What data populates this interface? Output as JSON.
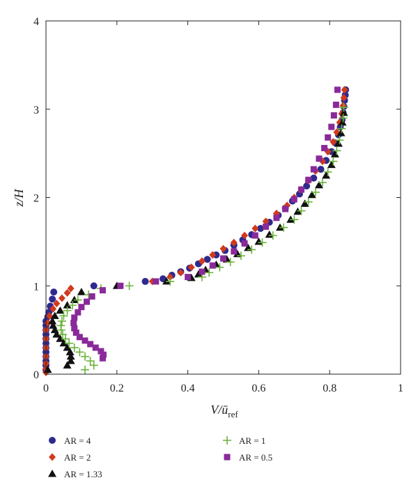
{
  "chart_data": {
    "type": "scatter",
    "title": "",
    "xlabel": "V/ū",
    "xlabel_sub": "ref",
    "ylabel": "z/H",
    "xlim": [
      0,
      1
    ],
    "ylim": [
      0,
      4
    ],
    "x_ticks": [
      0,
      0.2,
      0.4,
      0.6,
      0.8,
      1
    ],
    "x_tick_labels": [
      "0",
      "0.2",
      "0.4",
      "0.6",
      "0.8",
      "1"
    ],
    "y_ticks": [
      0,
      1,
      2,
      3,
      4
    ],
    "y_tick_labels": [
      "0",
      "1",
      "2",
      "3",
      "4"
    ],
    "grid": false,
    "legend_position": "bottom",
    "series": [
      {
        "name": "AR = 4",
        "marker": "circle",
        "color": "#2e2a8e",
        "x": [
          0.0,
          0.0,
          0.0,
          0.0,
          0.0,
          0.0,
          0.0,
          0.0,
          0.0,
          0.0,
          0.0,
          0.0,
          0.005,
          0.008,
          0.012,
          0.018,
          0.022,
          0.135,
          0.28,
          0.33,
          0.355,
          0.38,
          0.405,
          0.43,
          0.455,
          0.48,
          0.505,
          0.53,
          0.555,
          0.58,
          0.605,
          0.63,
          0.655,
          0.675,
          0.695,
          0.715,
          0.735,
          0.755,
          0.775,
          0.79,
          0.805,
          0.815,
          0.825,
          0.83,
          0.835,
          0.838,
          0.84,
          0.842,
          0.844,
          0.845
        ],
        "y": [
          0.05,
          0.1,
          0.15,
          0.2,
          0.25,
          0.3,
          0.35,
          0.4,
          0.45,
          0.5,
          0.55,
          0.6,
          0.65,
          0.7,
          0.77,
          0.85,
          0.93,
          1.0,
          1.05,
          1.08,
          1.12,
          1.16,
          1.2,
          1.25,
          1.3,
          1.35,
          1.4,
          1.46,
          1.52,
          1.58,
          1.65,
          1.72,
          1.8,
          1.88,
          1.96,
          2.04,
          2.13,
          2.22,
          2.32,
          2.42,
          2.52,
          2.62,
          2.71,
          2.8,
          2.88,
          2.96,
          3.03,
          3.1,
          3.16,
          3.22
        ]
      },
      {
        "name": "AR = 2",
        "marker": "diamond",
        "color": "#d03a1e",
        "x": [
          0.0,
          0.0,
          0.0,
          0.0,
          0.0,
          0.0,
          0.0,
          0.005,
          0.01,
          0.02,
          0.03,
          0.045,
          0.06,
          0.07,
          0.3,
          0.35,
          0.38,
          0.41,
          0.44,
          0.47,
          0.5,
          0.53,
          0.56,
          0.59,
          0.62,
          0.65,
          0.68,
          0.7,
          0.72,
          0.74,
          0.76,
          0.78,
          0.795,
          0.81,
          0.82,
          0.828,
          0.834,
          0.838,
          0.84,
          0.842
        ],
        "y": [
          0.02,
          0.06,
          0.12,
          0.2,
          0.3,
          0.4,
          0.5,
          0.58,
          0.66,
          0.74,
          0.8,
          0.86,
          0.92,
          0.97,
          1.05,
          1.1,
          1.15,
          1.21,
          1.28,
          1.35,
          1.42,
          1.49,
          1.57,
          1.65,
          1.73,
          1.82,
          1.91,
          2.0,
          2.09,
          2.19,
          2.3,
          2.41,
          2.52,
          2.63,
          2.74,
          2.85,
          2.95,
          3.04,
          3.13,
          3.22
        ]
      },
      {
        "name": "AR = 1.33",
        "marker": "triangle",
        "color": "#111111",
        "x": [
          0.005,
          0.06,
          0.07,
          0.07,
          0.068,
          0.06,
          0.05,
          0.04,
          0.03,
          0.025,
          0.02,
          0.018,
          0.025,
          0.04,
          0.06,
          0.08,
          0.1,
          0.2,
          0.34,
          0.41,
          0.43,
          0.45,
          0.48,
          0.51,
          0.54,
          0.57,
          0.6,
          0.63,
          0.66,
          0.69,
          0.71,
          0.73,
          0.75,
          0.77,
          0.79,
          0.805,
          0.815,
          0.825,
          0.832,
          0.836,
          0.84
        ],
        "y": [
          0.05,
          0.1,
          0.15,
          0.2,
          0.25,
          0.3,
          0.35,
          0.4,
          0.45,
          0.5,
          0.55,
          0.6,
          0.66,
          0.72,
          0.78,
          0.84,
          0.93,
          1.0,
          1.05,
          1.09,
          1.13,
          1.18,
          1.24,
          1.3,
          1.36,
          1.43,
          1.5,
          1.58,
          1.66,
          1.75,
          1.84,
          1.93,
          2.03,
          2.14,
          2.25,
          2.37,
          2.49,
          2.61,
          2.73,
          2.85,
          2.96
        ]
      },
      {
        "name": "AR = 1",
        "marker": "plus",
        "color": "#6ab23a",
        "x": [
          0.11,
          0.135,
          0.125,
          0.11,
          0.095,
          0.08,
          0.065,
          0.055,
          0.047,
          0.043,
          0.042,
          0.045,
          0.05,
          0.06,
          0.075,
          0.09,
          0.12,
          0.155,
          0.235,
          0.35,
          0.44,
          0.46,
          0.49,
          0.52,
          0.55,
          0.58,
          0.61,
          0.64,
          0.67,
          0.7,
          0.72,
          0.74,
          0.76,
          0.78,
          0.795,
          0.81,
          0.82,
          0.828,
          0.834,
          0.838,
          0.84
        ],
        "y": [
          0.05,
          0.1,
          0.15,
          0.2,
          0.25,
          0.3,
          0.35,
          0.4,
          0.45,
          0.5,
          0.55,
          0.6,
          0.66,
          0.72,
          0.78,
          0.84,
          0.9,
          0.97,
          1.0,
          1.05,
          1.1,
          1.15,
          1.21,
          1.27,
          1.34,
          1.41,
          1.49,
          1.57,
          1.66,
          1.75,
          1.85,
          1.95,
          2.06,
          2.17,
          2.29,
          2.41,
          2.53,
          2.65,
          2.78,
          2.9,
          3.02
        ]
      },
      {
        "name": "AR = 0.5",
        "marker": "square",
        "color": "#8a2a9a",
        "x": [
          0.16,
          0.162,
          0.155,
          0.14,
          0.125,
          0.11,
          0.095,
          0.085,
          0.08,
          0.078,
          0.08,
          0.09,
          0.1,
          0.115,
          0.13,
          0.16,
          0.21,
          0.31,
          0.4,
          0.44,
          0.47,
          0.5,
          0.53,
          0.56,
          0.59,
          0.62,
          0.65,
          0.675,
          0.7,
          0.72,
          0.74,
          0.755,
          0.77,
          0.785,
          0.795,
          0.805,
          0.812,
          0.818,
          0.822
        ],
        "y": [
          0.18,
          0.22,
          0.26,
          0.3,
          0.34,
          0.38,
          0.42,
          0.47,
          0.52,
          0.58,
          0.64,
          0.7,
          0.76,
          0.82,
          0.88,
          0.95,
          1.0,
          1.05,
          1.1,
          1.16,
          1.23,
          1.31,
          1.39,
          1.48,
          1.57,
          1.67,
          1.77,
          1.87,
          1.98,
          2.09,
          2.2,
          2.32,
          2.44,
          2.56,
          2.68,
          2.8,
          2.93,
          3.05,
          3.22
        ]
      }
    ]
  }
}
